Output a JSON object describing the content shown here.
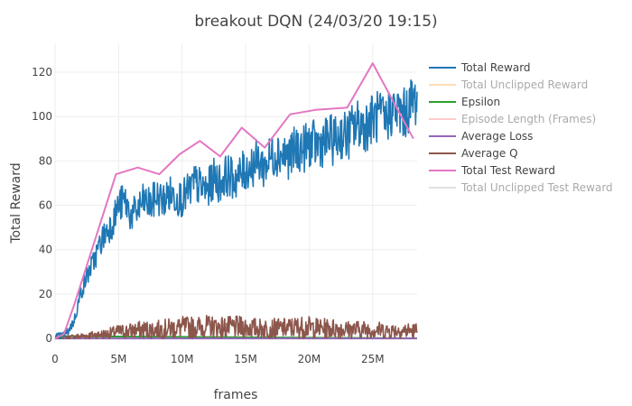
{
  "chart_data": {
    "type": "line",
    "title": "breakout DQN (24/03/20 19:15)",
    "xlabel": "frames",
    "ylabel": "Total Reward",
    "xlim": [
      0,
      28500000
    ],
    "ylim": [
      -2,
      133
    ],
    "x_ticks": [
      {
        "value": 0,
        "label": "0"
      },
      {
        "value": 5000000,
        "label": "5M"
      },
      {
        "value": 10000000,
        "label": "10M"
      },
      {
        "value": 15000000,
        "label": "15M"
      },
      {
        "value": 20000000,
        "label": "20M"
      },
      {
        "value": 25000000,
        "label": "25M"
      }
    ],
    "y_ticks": [
      {
        "value": 0,
        "label": "0"
      },
      {
        "value": 20,
        "label": "20"
      },
      {
        "value": 40,
        "label": "40"
      },
      {
        "value": 60,
        "label": "60"
      },
      {
        "value": 80,
        "label": "80"
      },
      {
        "value": 100,
        "label": "100"
      },
      {
        "value": 120,
        "label": "120"
      }
    ],
    "grid": true,
    "legend_position": "right",
    "series": [
      {
        "name": "Total Reward",
        "color": "#1f77b4",
        "visible": true,
        "noisy": true,
        "x": [
          0,
          500000,
          1000000,
          1500000,
          2000000,
          2500000,
          3000000,
          3500000,
          4000000,
          4500000,
          5000000,
          5500000,
          6000000,
          6500000,
          7000000,
          7500000,
          8000000,
          8500000,
          9000000,
          9500000,
          10000000,
          10500000,
          11000000,
          11500000,
          12000000,
          12500000,
          13000000,
          13500000,
          14000000,
          14500000,
          15000000,
          15500000,
          16000000,
          16500000,
          17000000,
          17500000,
          18000000,
          18500000,
          19000000,
          19500000,
          20000000,
          20500000,
          21000000,
          21500000,
          22000000,
          22500000,
          23000000,
          23500000,
          24000000,
          24500000,
          25000000,
          25500000,
          26000000,
          26500000,
          27000000,
          27500000,
          28000000,
          28500000
        ],
        "y": [
          1,
          1,
          3,
          8,
          20,
          28,
          34,
          42,
          48,
          52,
          60,
          62,
          55,
          58,
          62,
          60,
          64,
          62,
          65,
          64,
          63,
          66,
          70,
          68,
          67,
          72,
          70,
          74,
          72,
          73,
          76,
          78,
          80,
          77,
          82,
          84,
          83,
          82,
          86,
          85,
          88,
          87,
          88,
          90,
          89,
          92,
          91,
          95,
          97,
          96,
          99,
          100,
          98,
          103,
          102,
          101,
          106,
          108
        ]
      },
      {
        "name": "Total Unclipped Reward",
        "color": "#ffbb78",
        "visible": false
      },
      {
        "name": "Epsilon",
        "color": "#2ca02c",
        "visible": true,
        "x": [
          0,
          28500000
        ],
        "y": [
          1,
          0.05
        ]
      },
      {
        "name": "Episode Length (Frames)",
        "color": "#ff9896",
        "visible": false
      },
      {
        "name": "Average Loss",
        "color": "#9467bd",
        "visible": true,
        "x": [
          0,
          28500000
        ],
        "y": [
          0.01,
          0.01
        ]
      },
      {
        "name": "Average Q",
        "color": "#8c564b",
        "visible": true,
        "noisy": true,
        "x": [
          0,
          1000000,
          2000000,
          3000000,
          4000000,
          5000000,
          6000000,
          7000000,
          8000000,
          9000000,
          10000000,
          11000000,
          12000000,
          13000000,
          14000000,
          15000000,
          16000000,
          17000000,
          18000000,
          19000000,
          20000000,
          21000000,
          22000000,
          23000000,
          24000000,
          25000000,
          26000000,
          27000000,
          28000000,
          28500000
        ],
        "y": [
          0,
          0.5,
          1,
          1.5,
          2,
          3,
          3.5,
          4,
          4,
          4.5,
          5,
          5,
          5.5,
          5,
          5,
          5,
          4.5,
          4.5,
          4.5,
          5,
          5,
          4.5,
          4.5,
          4,
          4,
          4,
          3.5,
          3.5,
          3.5,
          3.5
        ]
      },
      {
        "name": "Total Test Reward",
        "color": "#e377c2",
        "visible": true,
        "x": [
          0,
          700000,
          1500000,
          4800000,
          6500000,
          8200000,
          9800000,
          11400000,
          13000000,
          14700000,
          16500000,
          18500000,
          20500000,
          23000000,
          25000000,
          28200000
        ],
        "y": [
          0,
          2,
          15,
          74,
          77,
          74,
          83,
          89,
          82,
          95,
          86,
          101,
          103,
          104,
          124,
          90
        ]
      },
      {
        "name": "Total Unclipped Test Reward",
        "color": "#c7c7c7",
        "visible": false
      }
    ]
  }
}
